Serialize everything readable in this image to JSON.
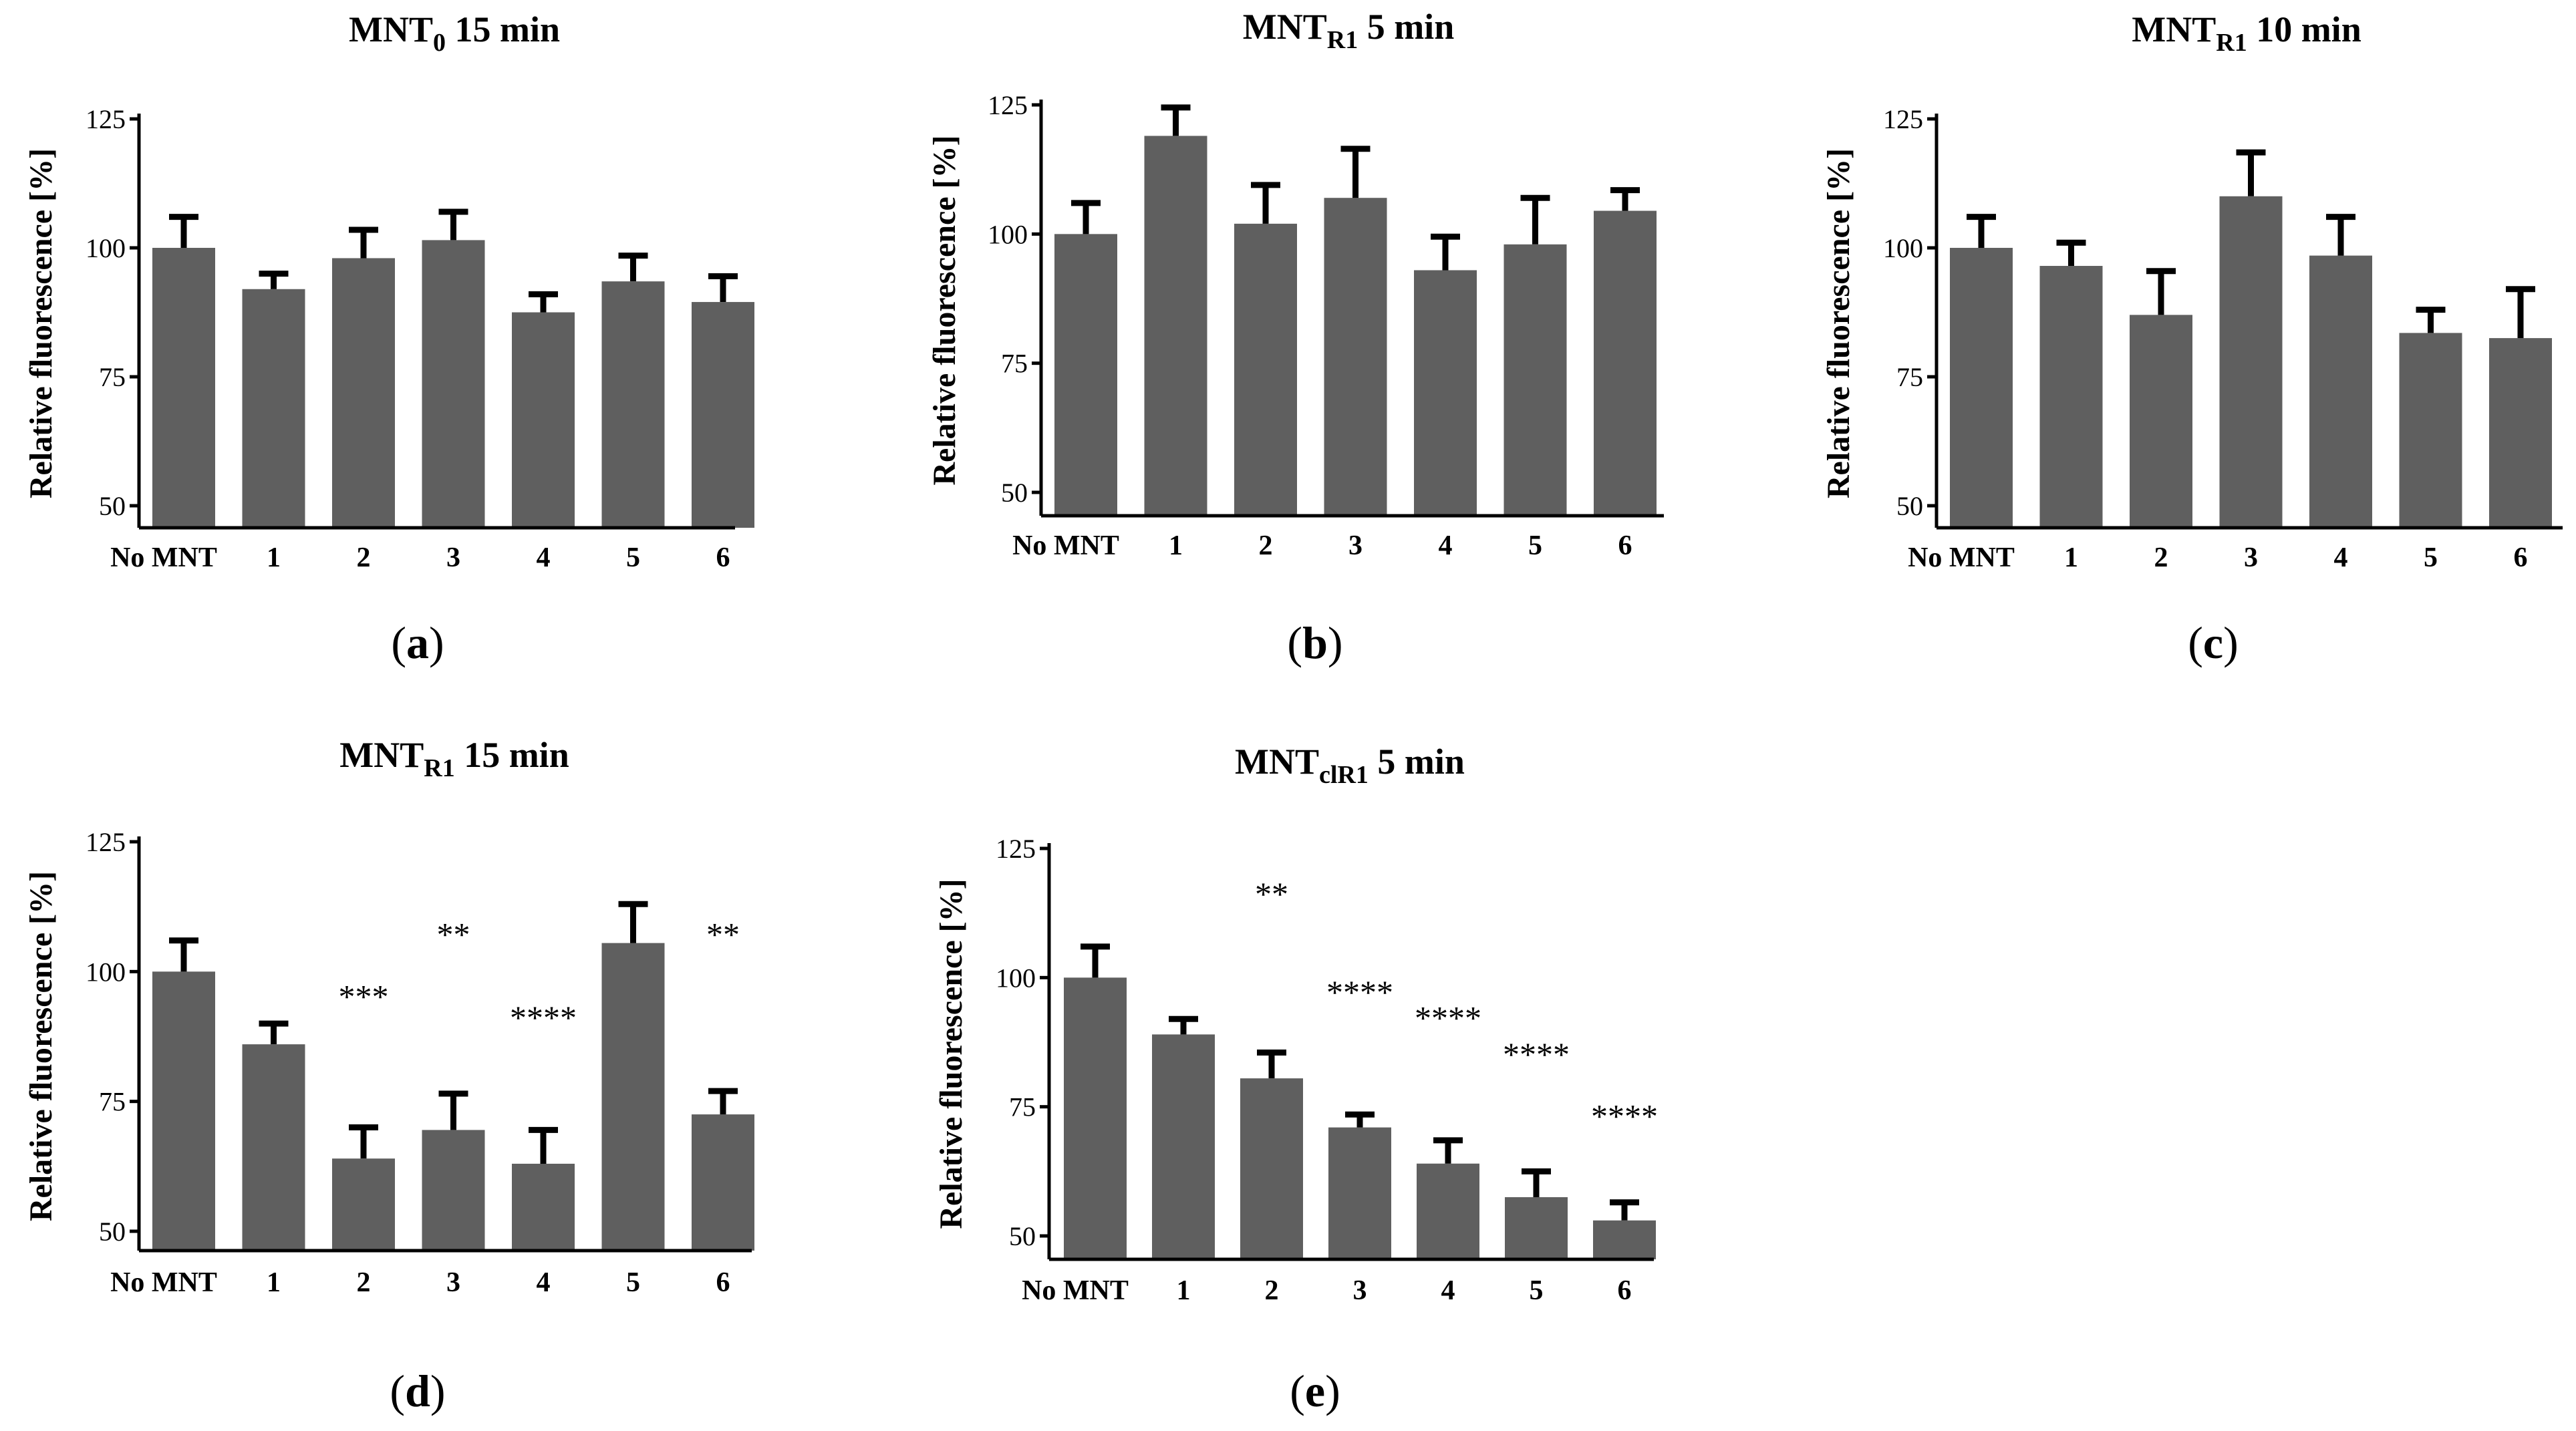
{
  "colors": {
    "bar": "#5f5f5f",
    "error_bar": "#000000",
    "axis": "#000000"
  },
  "chart_data": [
    {
      "type": "bar",
      "panel": "a",
      "title": {
        "main": "MNT",
        "sub": "0",
        "rest": " 15 min"
      },
      "ylabel": "Relative fluorescence [%]",
      "ylim": [
        45,
        128
      ],
      "yticks": [
        50,
        75,
        100,
        125
      ],
      "categories": [
        "No MNT",
        "1",
        "2",
        "3",
        "4",
        "5",
        "6"
      ],
      "values": [
        100,
        92,
        98,
        101.5,
        87.5,
        93.5,
        89.5
      ],
      "errors": [
        6,
        3,
        5.5,
        5.5,
        3.5,
        5,
        5
      ],
      "significance": [
        "",
        "",
        "",
        "",
        "",
        "",
        ""
      ],
      "grid": false,
      "legend": "none"
    },
    {
      "type": "bar",
      "panel": "b",
      "title": {
        "main": "MNT",
        "sub": "R1",
        "rest": " 5 min"
      },
      "ylabel": "Relative fluorescence [%]",
      "ylim": [
        45,
        128
      ],
      "yticks": [
        50,
        75,
        100,
        125
      ],
      "categories": [
        "No MNT",
        "1",
        "2",
        "3",
        "4",
        "5",
        "6"
      ],
      "values": [
        100,
        119,
        102,
        107,
        93,
        98,
        104.5
      ],
      "errors": [
        6,
        5.5,
        7.5,
        9.5,
        6.5,
        9,
        4
      ],
      "significance": [
        "",
        "",
        "",
        "",
        "",
        "",
        ""
      ],
      "grid": false,
      "legend": "none"
    },
    {
      "type": "bar",
      "panel": "c",
      "title": {
        "main": "MNT",
        "sub": "R1",
        "rest": " 10 min"
      },
      "ylabel": "Relative fluorescence [%]",
      "ylim": [
        45,
        128
      ],
      "yticks": [
        50,
        75,
        100,
        125
      ],
      "categories": [
        "No MNT",
        "1",
        "2",
        "3",
        "4",
        "5",
        "6"
      ],
      "values": [
        100,
        96.5,
        87,
        110,
        98.5,
        83.5,
        82.5
      ],
      "errors": [
        6,
        4.5,
        8.5,
        8.5,
        7.5,
        4.5,
        9.5
      ],
      "significance": [
        "",
        "",
        "",
        "",
        "",
        "",
        ""
      ],
      "grid": false,
      "legend": "none"
    },
    {
      "type": "bar",
      "panel": "d",
      "title": {
        "main": "MNT",
        "sub": "R1",
        "rest": " 15 min"
      },
      "ylabel": "Relative fluorescence [%]",
      "ylim": [
        45,
        128
      ],
      "yticks": [
        50,
        75,
        100,
        125
      ],
      "categories": [
        "No MNT",
        "1",
        "2",
        "3",
        "4",
        "5",
        "6"
      ],
      "values": [
        100,
        86,
        64,
        69.5,
        63,
        105.5,
        72.5
      ],
      "errors": [
        6,
        4,
        6,
        7,
        6.5,
        7.5,
        4.5
      ],
      "significance": [
        "",
        "",
        "***",
        "**",
        "****",
        "",
        "**"
      ],
      "sig_values": [
        null,
        null,
        93,
        105,
        89,
        null,
        105
      ],
      "grid": false,
      "legend": "none"
    },
    {
      "type": "bar",
      "panel": "e",
      "title": {
        "main": "MNT",
        "sub": "clR1",
        "rest": " 5 min"
      },
      "ylabel": "Relative fluorescence [%]",
      "ylim": [
        45,
        128
      ],
      "yticks": [
        50,
        75,
        100,
        125
      ],
      "categories": [
        "No MNT",
        "1",
        "2",
        "3",
        "4",
        "5",
        "6"
      ],
      "values": [
        100,
        89,
        80.5,
        71,
        64,
        57.5,
        53
      ],
      "errors": [
        6,
        3,
        5,
        2.5,
        4.5,
        5,
        3.5
      ],
      "significance": [
        "",
        "",
        "**",
        "****",
        "****",
        "****",
        "****"
      ],
      "sig_values": [
        null,
        null,
        114,
        95,
        90,
        83,
        71
      ],
      "grid": false,
      "legend": "none"
    }
  ],
  "panel_labels": [
    {
      "open": "(",
      "letter": "a",
      "close": ")"
    },
    {
      "open": "(",
      "letter": "b",
      "close": ")"
    },
    {
      "open": "(",
      "letter": "c",
      "close": ")"
    },
    {
      "open": "(",
      "letter": "d",
      "close": ")"
    },
    {
      "open": "(",
      "letter": "e",
      "close": ")"
    }
  ]
}
